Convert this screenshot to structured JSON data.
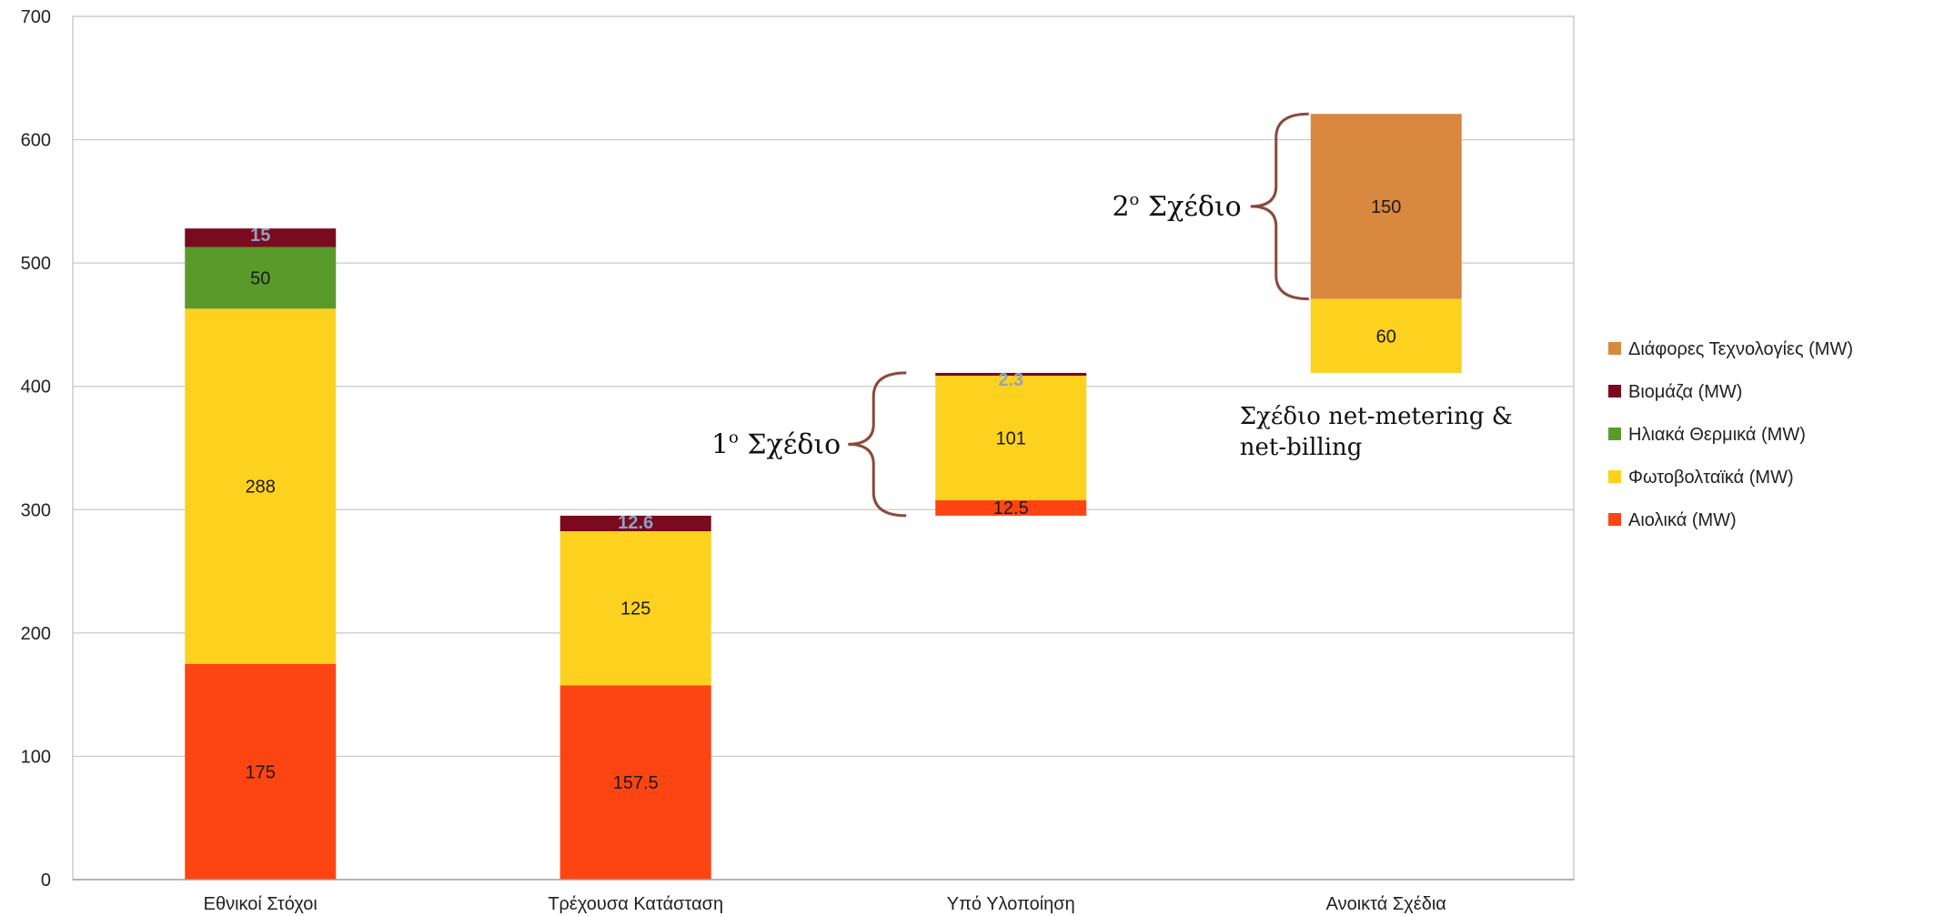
{
  "chart_data": {
    "type": "bar",
    "stacked": true,
    "categories": [
      "Εθνικοί Στόχοι",
      "Τρέχουσα Κατάσταση",
      "Υπό Υλοποίηση",
      "Ανοικτά Σχέδια"
    ],
    "ylim": [
      0,
      700
    ],
    "yticks": [
      0,
      100,
      200,
      300,
      400,
      500,
      600,
      700
    ],
    "grid": true,
    "legend_position": "right",
    "series_order": [
      "Αιολικά (MW)",
      "Φωτοβολταϊκά (MW)",
      "Ηλιακά Θερμικά (MW)",
      "Βιομάζα (MW)",
      "Διάφορες Τεχνολογίες (MW)"
    ],
    "legend_entries": [
      "Διάφορες Τεχνολογίες  (MW)",
      "Βιομάζα (MW)",
      "Ηλιακά Θερμικά (MW)",
      "Φωτοβολταϊκά (MW)",
      "Αιολικά (MW)"
    ],
    "bars": [
      {
        "category": "Εθνικοί Στόχοι",
        "base": 0,
        "segments": [
          {
            "series": "Αιολικά (MW)",
            "value": 175,
            "label": "175",
            "color": "#fc4513"
          },
          {
            "series": "Φωτοβολταϊκά (MW)",
            "value": 288,
            "label": "288",
            "color": "#fcd21f"
          },
          {
            "series": "Ηλιακά Θερμικά (MW)",
            "value": 50,
            "label": "50",
            "color": "#5a9a2a"
          },
          {
            "series": "Βιομάζα (MW)",
            "value": 15,
            "label": "15",
            "color": "#7a0a1e",
            "small_label": true
          }
        ]
      },
      {
        "category": "Τρέχουσα Κατάσταση",
        "base": 0,
        "segments": [
          {
            "series": "Αιολικά (MW)",
            "value": 157.5,
            "label": "157.5",
            "color": "#fc4513"
          },
          {
            "series": "Φωτοβολταϊκά (MW)",
            "value": 125,
            "label": "125",
            "color": "#fcd21f"
          },
          {
            "series": "Βιομάζα (MW)",
            "value": 12.6,
            "label": "12.6",
            "color": "#7a0a1e",
            "small_label": true
          }
        ]
      },
      {
        "category": "Υπό Υλοποίηση",
        "base": 295.1,
        "segments": [
          {
            "series": "Αιολικά (MW)",
            "value": 12.5,
            "label": "12.5",
            "color": "#fc4513",
            "label_below": true
          },
          {
            "series": "Φωτοβολταϊκά (MW)",
            "value": 101,
            "label": "101",
            "color": "#fcd21f"
          },
          {
            "series": "Βιομάζα (MW)",
            "value": 2.3,
            "label": "2.3",
            "color": "#7a0a1e",
            "small_label": true
          }
        ]
      },
      {
        "category": "Ανοικτά Σχέδια",
        "base": 410.9,
        "segments": [
          {
            "series": "Φωτοβολταϊκά (MW)",
            "value": 60,
            "label": "60",
            "color": "#fcd21f"
          },
          {
            "series": "Διάφορες Τεχνολογίες (MW)",
            "value": 150,
            "label": "150",
            "color": "#d98840"
          }
        ]
      }
    ],
    "series_colors": {
      "Διάφορες Τεχνολογίες (MW)": "#d98840",
      "Βιομάζα (MW)": "#7a0a1e",
      "Ηλιακά Θερμικά (MW)": "#5a9a2a",
      "Φωτοβολταϊκά (MW)": "#fcd21f",
      "Αιολικά (MW)": "#fc4513"
    },
    "annotations": [
      {
        "text_main": "1",
        "text_sup": "ο",
        "text_rest": " Σχέδιο",
        "brace_from": 295.1,
        "brace_to": 410.9,
        "bar": "Υπό Υλοποίηση"
      },
      {
        "text_main": "2",
        "text_sup": "ο",
        "text_rest": " Σχέδιο",
        "brace_from": 470.9,
        "brace_to": 620.9,
        "bar": "Ανοικτά Σχέδια"
      },
      {
        "text_line1": "Σχέδιο net-metering &",
        "text_line2": "net-billing"
      }
    ]
  }
}
